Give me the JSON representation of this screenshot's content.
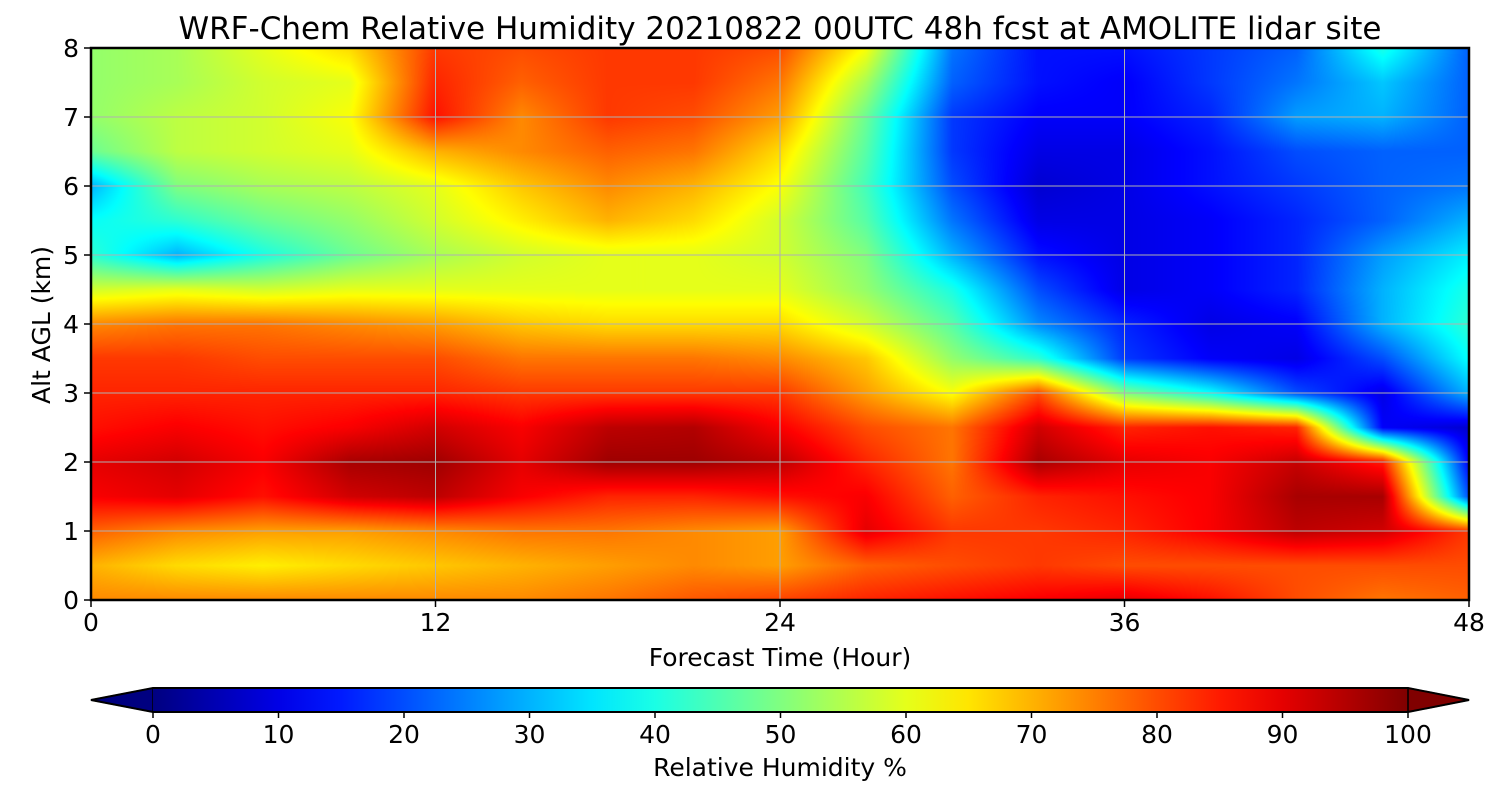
{
  "chart_data": {
    "type": "heatmap",
    "title": "WRF-Chem Relative Humidity 20210822 00UTC 48h fcst at AMOLITE lidar site",
    "xlabel": "Forecast Time (Hour)",
    "ylabel": "Alt AGL (km)",
    "xlim": [
      0,
      48
    ],
    "ylim": [
      0,
      8
    ],
    "xticks": [
      "0",
      "12",
      "24",
      "36",
      "48"
    ],
    "yticks": [
      "0",
      "1",
      "2",
      "3",
      "4",
      "5",
      "6",
      "7",
      "8"
    ],
    "grid": true,
    "colormap": "jet",
    "colorbar": {
      "label": "Relative Humidity %",
      "range": [
        0,
        100
      ],
      "extend": "both",
      "ticks": [
        "0",
        "10",
        "20",
        "30",
        "40",
        "50",
        "60",
        "70",
        "80",
        "90",
        "100"
      ]
    },
    "x_hours": [
      0,
      3,
      6,
      9,
      12,
      15,
      18,
      21,
      24,
      27,
      30,
      33,
      36,
      39,
      42,
      45,
      48
    ],
    "y_km": [
      0,
      0.5,
      1,
      1.5,
      2,
      2.5,
      3,
      3.5,
      4,
      4.5,
      5,
      5.5,
      6,
      6.5,
      7,
      7.5,
      8
    ],
    "values": [
      [
        74,
        74,
        74,
        74,
        74,
        74,
        76,
        79,
        81,
        84,
        86,
        88,
        90,
        86,
        80,
        76,
        78
      ],
      [
        70,
        66,
        64,
        66,
        68,
        70,
        72,
        74,
        72,
        78,
        80,
        82,
        80,
        80,
        80,
        80,
        80
      ],
      [
        78,
        74,
        72,
        72,
        74,
        76,
        76,
        74,
        72,
        90,
        82,
        82,
        84,
        88,
        94,
        92,
        82
      ],
      [
        88,
        90,
        86,
        92,
        94,
        88,
        84,
        84,
        86,
        88,
        78,
        84,
        86,
        88,
        96,
        96,
        20
      ],
      [
        90,
        92,
        88,
        96,
        97,
        90,
        97,
        97,
        94,
        84,
        76,
        96,
        90,
        88,
        93,
        85,
        12
      ],
      [
        86,
        88,
        86,
        88,
        92,
        88,
        94,
        95,
        88,
        80,
        76,
        92,
        84,
        86,
        84,
        12,
        8
      ],
      [
        84,
        84,
        84,
        84,
        84,
        82,
        82,
        82,
        82,
        72,
        62,
        80,
        50,
        38,
        20,
        10,
        30
      ],
      [
        82,
        82,
        80,
        80,
        80,
        76,
        76,
        76,
        74,
        68,
        52,
        42,
        18,
        12,
        10,
        20,
        38
      ],
      [
        74,
        76,
        76,
        74,
        72,
        68,
        66,
        66,
        66,
        58,
        46,
        26,
        16,
        10,
        12,
        30,
        42
      ],
      [
        58,
        60,
        58,
        60,
        60,
        60,
        60,
        60,
        60,
        52,
        40,
        20,
        10,
        12,
        16,
        30,
        40
      ],
      [
        42,
        30,
        40,
        48,
        54,
        58,
        60,
        60,
        58,
        50,
        30,
        14,
        10,
        12,
        16,
        28,
        36
      ],
      [
        38,
        42,
        48,
        52,
        58,
        64,
        70,
        66,
        58,
        46,
        24,
        10,
        10,
        12,
        16,
        22,
        30
      ],
      [
        30,
        50,
        54,
        56,
        60,
        68,
        74,
        70,
        62,
        44,
        20,
        8,
        10,
        14,
        18,
        22,
        24
      ],
      [
        48,
        56,
        58,
        60,
        70,
        74,
        78,
        76,
        66,
        46,
        18,
        10,
        10,
        14,
        20,
        22,
        22
      ],
      [
        52,
        56,
        58,
        62,
        86,
        74,
        82,
        80,
        72,
        48,
        18,
        12,
        12,
        16,
        28,
        30,
        22
      ],
      [
        52,
        54,
        58,
        60,
        84,
        78,
        82,
        82,
        76,
        54,
        22,
        14,
        12,
        18,
        24,
        32,
        22
      ],
      [
        52,
        54,
        60,
        66,
        82,
        80,
        82,
        82,
        80,
        62,
        24,
        14,
        14,
        18,
        22,
        40,
        22
      ]
    ]
  }
}
